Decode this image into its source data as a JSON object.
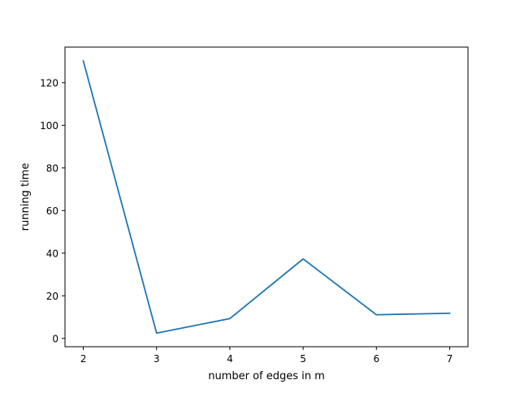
{
  "chart_data": {
    "type": "line",
    "title": "",
    "xlabel": "number of edges in m",
    "ylabel": "running time",
    "x": [
      2,
      3,
      4,
      5,
      6,
      7
    ],
    "series": [
      {
        "values": [
          130.2,
          2.5,
          9.3,
          37.3,
          11.1,
          11.8
        ],
        "color": "#1f77b4"
      }
    ],
    "xlim": [
      1.75,
      7.25
    ],
    "ylim": [
      -3.9,
      136.7
    ],
    "xticks": [
      2,
      3,
      4,
      5,
      6,
      7
    ],
    "yticks": [
      0,
      20,
      40,
      60,
      80,
      100,
      120
    ],
    "grid": false,
    "legend": "none"
  }
}
